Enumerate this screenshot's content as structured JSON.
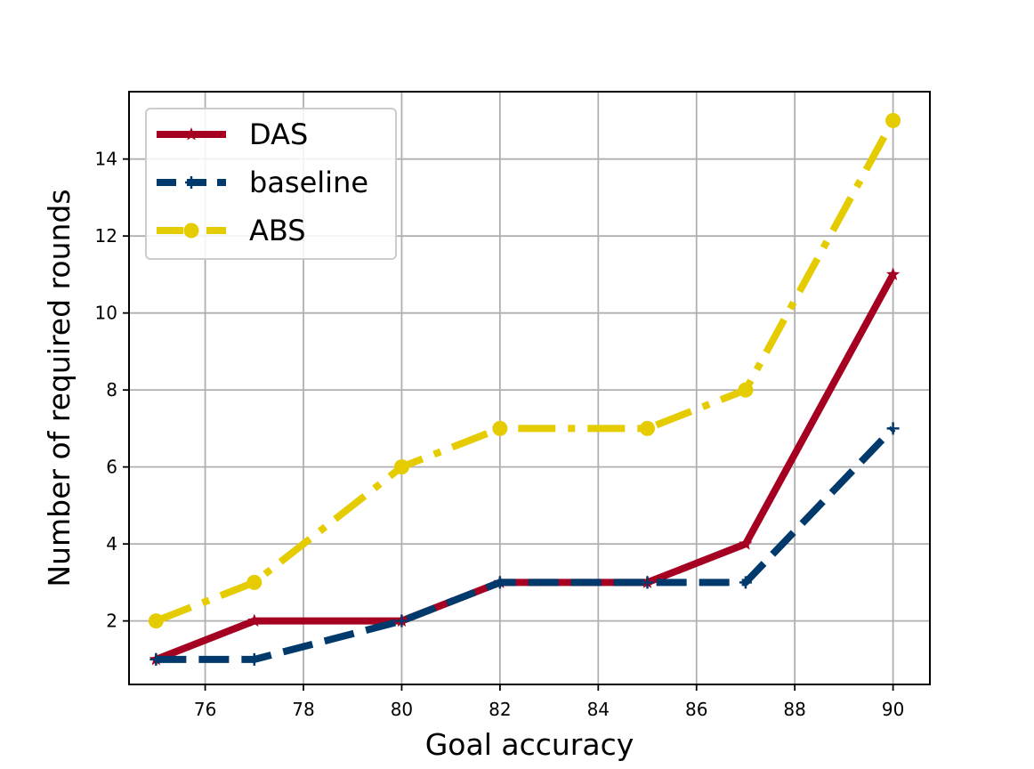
{
  "chart_data": {
    "type": "line",
    "xlabel": "Goal accuracy",
    "ylabel": "Number of required rounds",
    "xlim": [
      74.45,
      90.75
    ],
    "ylim": [
      0.35,
      15.75
    ],
    "xticks": [
      76,
      78,
      80,
      82,
      84,
      86,
      88,
      90
    ],
    "yticks": [
      2,
      4,
      6,
      8,
      10,
      12,
      14
    ],
    "grid": true,
    "legend_position": "top-left",
    "x": [
      75,
      77,
      80,
      82,
      85,
      87,
      90
    ],
    "series": [
      {
        "name": "DAS",
        "values": [
          1,
          2,
          2,
          3,
          3,
          4,
          11
        ],
        "color": "#a50021",
        "linestyle": "solid",
        "marker": "star"
      },
      {
        "name": "baseline",
        "values": [
          1,
          1,
          2,
          3,
          3,
          3,
          7
        ],
        "color": "#003a6c",
        "linestyle": "dashed",
        "marker": "plus"
      },
      {
        "name": "ABS",
        "values": [
          2,
          3,
          6,
          7,
          7,
          8,
          15
        ],
        "color": "#e5cc00",
        "linestyle": "dashdot",
        "marker": "circle"
      }
    ]
  }
}
